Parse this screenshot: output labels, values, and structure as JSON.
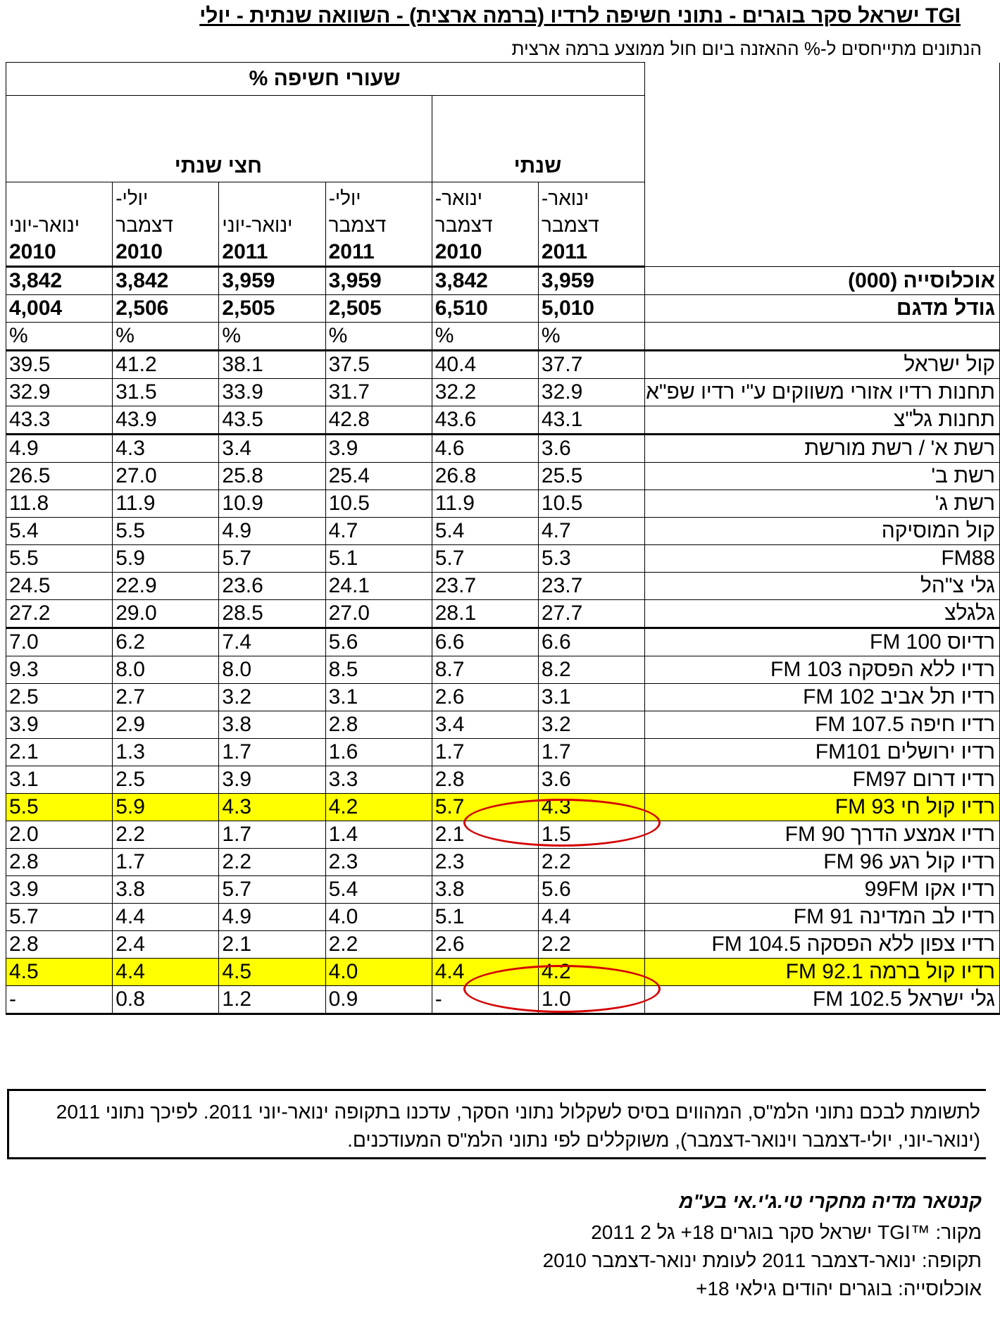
{
  "title": "TGI ישראל סקר בוגרים - נתוני חשיפה לרדיו (ברמה ארצית) - השוואה שנתית - יולי",
  "subtitle": "הנתונים מתייחסים ל-% ההאזנה ביום חול ממוצע ברמה ארצית",
  "table": {
    "header_main": "שעורי חשיפה %",
    "group_annual": "שנתי",
    "group_half": "חצי שנתי",
    "periods": [
      {
        "line1": "ינואר-",
        "line2": "דצמבר",
        "year": "2011"
      },
      {
        "line1": "ינואר-",
        "line2": "דצמבר",
        "year": "2010"
      },
      {
        "line1": "יולי-",
        "line2": "דצמבר",
        "year": "2011"
      },
      {
        "line1": "",
        "line2": "ינואר-יוני",
        "year": "2011"
      },
      {
        "line1": "יולי-",
        "line2": "דצמבר",
        "year": "2010"
      },
      {
        "line1": "",
        "line2": "ינואר-יוני",
        "year": "2010"
      }
    ],
    "population_label": "אוכלוסייה (000)",
    "population": [
      "3,959",
      "3,842",
      "3,959",
      "3,959",
      "3,842",
      "3,842"
    ],
    "sample_label": "גודל מדגם",
    "sample": [
      "5,010",
      "6,510",
      "2,505",
      "2,505",
      "2,506",
      "4,004"
    ],
    "unit": "%",
    "rows": [
      {
        "label": "קול ישראל",
        "values": [
          "37.7",
          "40.4",
          "37.5",
          "38.1",
          "41.2",
          "39.5"
        ]
      },
      {
        "label": "תחנות רדיו אזורי משווקים ע\"י רדיו שפ\"א",
        "values": [
          "32.9",
          "32.2",
          "31.7",
          "33.9",
          "31.5",
          "32.9"
        ]
      },
      {
        "label": "תחנות גל\"צ",
        "values": [
          "43.1",
          "43.6",
          "42.8",
          "43.5",
          "43.9",
          "43.3"
        ]
      },
      {
        "label": "רשת א' / רשת מורשת",
        "values": [
          "3.6",
          "4.6",
          "3.9",
          "3.4",
          "4.3",
          "4.9"
        ]
      },
      {
        "label": "רשת ב'",
        "values": [
          "25.5",
          "26.8",
          "25.4",
          "25.8",
          "27.0",
          "26.5"
        ]
      },
      {
        "label": "רשת ג'",
        "values": [
          "10.5",
          "11.9",
          "10.5",
          "10.9",
          "11.9",
          "11.8"
        ]
      },
      {
        "label": "קול המוסיקה",
        "values": [
          "4.7",
          "5.4",
          "4.7",
          "4.9",
          "5.5",
          "5.4"
        ]
      },
      {
        "label": "FM88",
        "values": [
          "5.3",
          "5.7",
          "5.1",
          "5.7",
          "5.9",
          "5.5"
        ]
      },
      {
        "label": "גלי צ\"הל",
        "values": [
          "23.7",
          "23.7",
          "24.1",
          "23.6",
          "22.9",
          "24.5"
        ]
      },
      {
        "label": "גלגלצ",
        "values": [
          "27.7",
          "28.1",
          "27.0",
          "28.5",
          "29.0",
          "27.2"
        ]
      },
      {
        "label": "רדיוס FM 100",
        "values": [
          "6.6",
          "6.6",
          "5.6",
          "7.4",
          "6.2",
          "7.0"
        ]
      },
      {
        "label": "רדיו ללא הפסקה FM 103",
        "values": [
          "8.2",
          "8.7",
          "8.5",
          "8.0",
          "8.0",
          "9.3"
        ]
      },
      {
        "label": "רדיו תל אביב FM 102",
        "values": [
          "3.1",
          "2.6",
          "3.1",
          "3.2",
          "2.7",
          "2.5"
        ]
      },
      {
        "label": "רדיו חיפה FM 107.5",
        "values": [
          "3.2",
          "3.4",
          "2.8",
          "3.8",
          "2.9",
          "3.9"
        ]
      },
      {
        "label": "רדיו ירושלים FM101",
        "values": [
          "1.7",
          "1.7",
          "1.6",
          "1.7",
          "1.3",
          "2.1"
        ]
      },
      {
        "label": "רדיו דרום FM97",
        "values": [
          "3.6",
          "2.8",
          "3.3",
          "3.9",
          "2.5",
          "3.1"
        ]
      },
      {
        "label": "רדיו קול חי FM 93",
        "values": [
          "4.3",
          "5.7",
          "4.2",
          "4.3",
          "5.9",
          "5.5"
        ],
        "highlight": true
      },
      {
        "label": "רדיו אמצע הדרך FM 90",
        "values": [
          "1.5",
          "2.1",
          "1.4",
          "1.7",
          "2.2",
          "2.0"
        ]
      },
      {
        "label": "רדיו קול רגע FM 96",
        "values": [
          "2.2",
          "2.3",
          "2.3",
          "2.2",
          "1.7",
          "2.8"
        ]
      },
      {
        "label": "רדיו אקו 99FM",
        "values": [
          "5.6",
          "3.8",
          "5.4",
          "5.7",
          "3.8",
          "3.9"
        ]
      },
      {
        "label": "רדיו לב המדינה FM 91",
        "values": [
          "4.4",
          "5.1",
          "4.0",
          "4.9",
          "4.4",
          "5.7"
        ]
      },
      {
        "label": "רדיו צפון ללא הפסקה FM 104.5",
        "values": [
          "2.2",
          "2.6",
          "2.2",
          "2.1",
          "2.4",
          "2.8"
        ]
      },
      {
        "label": "רדיו קול ברמה FM 92.1",
        "values": [
          "4.2",
          "4.4",
          "4.0",
          "4.5",
          "4.4",
          "4.5"
        ],
        "highlight": true
      },
      {
        "label": "גלי ישראל FM 102.5",
        "values": [
          "1.0",
          "-",
          "0.9",
          "1.2",
          "0.8",
          "-"
        ]
      }
    ]
  },
  "note": {
    "line1": "לתשומת לבכם נתוני הלמ\"ס, המהווים בסיס לשקלול נתוני הסקר, עדכנו בתקופה ינואר-יוני 2011. לפיכך נתוני 2011",
    "line2": "(ינואר-יוני, יולי-דצמבר וינואר-דצמבר), משוקללים לפי נתוני הלמ\"ס המעודכנים."
  },
  "credit": "קנטאר מדיה מחקרי טי.ג'י.אי בע\"מ",
  "source": "מקור: ™TGI ישראל סקר בוגרים 18+ גל 2 2011",
  "period": "תקופה: ינואר-דצמבר 2011 לעומת ינואר-דצמבר 2010",
  "population_line": "אוכלוסייה: בוגרים יהודים גילאי 18+",
  "colors": {
    "highlight": "#ffff00",
    "circle": "#d40000"
  }
}
